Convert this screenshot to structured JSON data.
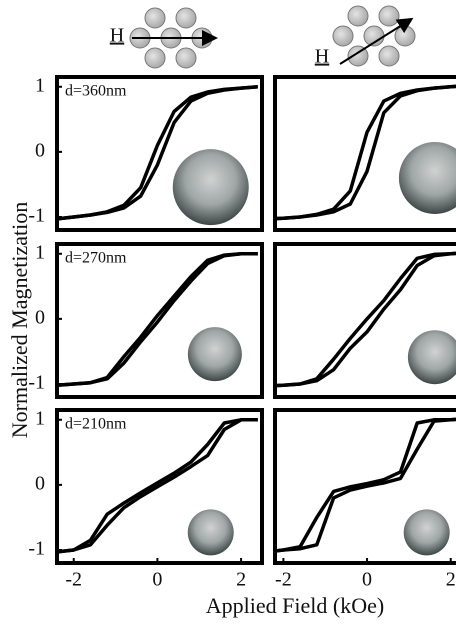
{
  "figure": {
    "ylabel": "Normalized Magnetization",
    "xlabel": "Applied Field (kOe)",
    "field_symbols": [
      "H",
      "H"
    ]
  },
  "chart_data": [
    {
      "type": "line",
      "annotation": "d=360nm",
      "x": [
        -2.4,
        -2,
        -1.6,
        -1.2,
        -0.8,
        -0.4,
        0,
        0.4,
        0.8,
        1.2,
        1.6,
        2,
        2.4
      ],
      "xlim": [
        -2.4,
        2.5
      ],
      "ylim": [
        -1.2,
        1.15
      ],
      "yticks": [
        -1,
        0,
        1
      ],
      "series": [
        {
          "color": "#000000",
          "values": [
            -1.03,
            -1.0,
            -0.97,
            -0.92,
            -0.82,
            -0.55,
            0.1,
            0.62,
            0.84,
            0.92,
            0.96,
            0.98,
            1.0
          ]
        },
        {
          "color": "#000000",
          "values": [
            -1.03,
            -1.0,
            -0.97,
            -0.93,
            -0.86,
            -0.68,
            -0.2,
            0.45,
            0.78,
            0.9,
            0.95,
            0.98,
            1.0
          ]
        }
      ]
    },
    {
      "type": "line",
      "x": [
        -2.4,
        -2,
        -1.6,
        -1.2,
        -0.8,
        -0.4,
        0,
        0.4,
        0.8,
        1.2,
        1.6,
        2,
        2.4
      ],
      "xlim": [
        -2.2,
        2.7
      ],
      "ylim": [
        -1.2,
        1.15
      ],
      "series": [
        {
          "color": "#000000",
          "values": [
            -1.03,
            -1.02,
            -1.0,
            -0.96,
            -0.88,
            -0.6,
            0.3,
            0.78,
            0.9,
            0.95,
            0.98,
            1.0,
            1.02
          ]
        },
        {
          "color": "#000000",
          "values": [
            -1.03,
            -1.02,
            -1.0,
            -0.97,
            -0.92,
            -0.8,
            -0.3,
            0.6,
            0.86,
            0.94,
            0.98,
            1.0,
            1.02
          ]
        }
      ]
    },
    {
      "type": "line",
      "annotation": "d=270nm",
      "x": [
        -2.4,
        -2,
        -1.6,
        -1.2,
        -0.8,
        -0.4,
        0,
        0.4,
        0.8,
        1.2,
        1.6,
        2,
        2.4
      ],
      "xlim": [
        -2.4,
        2.5
      ],
      "ylim": [
        -1.2,
        1.15
      ],
      "yticks": [
        -1,
        0,
        1
      ],
      "series": [
        {
          "color": "#000000",
          "values": [
            -1.02,
            -1.0,
            -0.98,
            -0.9,
            -0.58,
            -0.28,
            0.05,
            0.35,
            0.65,
            0.9,
            0.98,
            1.0,
            1.0
          ]
        },
        {
          "color": "#000000",
          "values": [
            -1.02,
            -1.0,
            -0.98,
            -0.92,
            -0.68,
            -0.35,
            -0.05,
            0.28,
            0.58,
            0.85,
            0.97,
            1.0,
            1.0
          ]
        }
      ]
    },
    {
      "type": "line",
      "x": [
        -2.4,
        -2,
        -1.6,
        -1.2,
        -0.8,
        -0.4,
        0,
        0.4,
        0.8,
        1.2,
        1.6,
        2,
        2.4
      ],
      "xlim": [
        -2.2,
        2.7
      ],
      "ylim": [
        -1.2,
        1.15
      ],
      "series": [
        {
          "color": "#000000",
          "values": [
            -1.03,
            -1.02,
            -1.0,
            -0.92,
            -0.62,
            -0.3,
            0.0,
            0.28,
            0.62,
            0.93,
            0.99,
            1.0,
            1.02
          ]
        },
        {
          "color": "#000000",
          "values": [
            -1.03,
            -1.02,
            -1.0,
            -0.95,
            -0.78,
            -0.45,
            -0.2,
            0.15,
            0.45,
            0.82,
            0.97,
            1.0,
            1.02
          ]
        }
      ]
    },
    {
      "type": "line",
      "annotation": "d=210nm",
      "x": [
        -2.4,
        -2,
        -1.6,
        -1.2,
        -0.8,
        -0.4,
        0,
        0.4,
        0.8,
        1.2,
        1.6,
        2,
        2.4
      ],
      "xlim": [
        -2.4,
        2.5
      ],
      "ylim": [
        -1.2,
        1.15
      ],
      "yticks": [
        -1,
        0,
        1
      ],
      "xticks": [
        -2,
        0,
        2
      ],
      "series": [
        {
          "color": "#000000",
          "values": [
            -1.03,
            -1.0,
            -0.85,
            -0.45,
            -0.28,
            -0.12,
            0.03,
            0.18,
            0.35,
            0.62,
            0.95,
            1.0,
            1.0
          ]
        },
        {
          "color": "#000000",
          "values": [
            -1.03,
            -1.0,
            -0.92,
            -0.62,
            -0.35,
            -0.18,
            -0.03,
            0.12,
            0.28,
            0.45,
            0.85,
            1.0,
            1.0
          ]
        }
      ]
    },
    {
      "type": "line",
      "x": [
        -2.4,
        -2,
        -1.6,
        -1.2,
        -0.8,
        -0.4,
        0,
        0.4,
        0.8,
        1.2,
        1.6,
        2,
        2.4
      ],
      "xlim": [
        -2.2,
        2.7
      ],
      "ylim": [
        -1.2,
        1.15
      ],
      "xticks": [
        -2,
        0,
        2
      ],
      "series": [
        {
          "color": "#000000",
          "values": [
            -1.03,
            -1.0,
            -0.95,
            -0.5,
            -0.1,
            -0.03,
            0.02,
            0.08,
            0.2,
            0.95,
            1.0,
            1.0,
            1.02
          ]
        },
        {
          "color": "#000000",
          "values": [
            -1.03,
            -1.0,
            -0.98,
            -0.92,
            -0.2,
            -0.08,
            -0.02,
            0.03,
            0.1,
            0.55,
            0.98,
            1.0,
            1.02
          ]
        }
      ]
    }
  ]
}
